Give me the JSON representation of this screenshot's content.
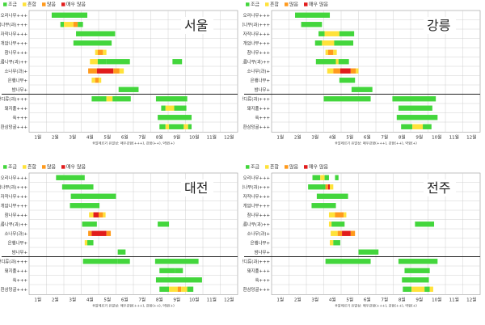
{
  "colors": {
    "low": "#43d63c",
    "moderate": "#ffe23a",
    "high": "#ff9a1c",
    "very_high": "#e11c1c"
  },
  "legend": [
    "조금",
    "흔함",
    "많음",
    "매우 많음"
  ],
  "months": [
    "1월",
    "2월",
    "3월",
    "4월",
    "5월",
    "6월",
    "7월",
    "8월",
    "9월",
    "10월",
    "11월",
    "12월"
  ],
  "note": "※알레르기 유발성: 매우강함(+++), 강함(++), 약함(+)",
  "species": [
    "오리나무+++",
    "측백나무(과)+++",
    "자작나무+++",
    "개암나무+++",
    "참나무+++",
    "느릅나무(과)++",
    "소나무(과)+",
    "은행나무+",
    "밤나무+",
    "잔디류(과)+++",
    "돼지풀+++",
    "쑥+++",
    "환삼덩굴+++"
  ],
  "chart_data": [
    {
      "type": "timeline",
      "city": "서울",
      "x_unit": "month",
      "xlim": [
        0.5,
        12.5
      ],
      "rows": [
        {
          "species": "오리나무+++",
          "segments": [
            {
              "start": 1.8,
              "end": 3.85,
              "level": "low"
            }
          ]
        },
        {
          "species": "측백나무(과)+++",
          "segments": [
            {
              "start": 2.3,
              "end": 2.5,
              "level": "low"
            },
            {
              "start": 2.5,
              "end": 3.05,
              "level": "moderate"
            },
            {
              "start": 3.05,
              "end": 3.3,
              "level": "high"
            },
            {
              "start": 3.3,
              "end": 3.6,
              "level": "low"
            }
          ]
        },
        {
          "species": "자작나무+++",
          "segments": [
            {
              "start": 3.2,
              "end": 5.45,
              "level": "low"
            }
          ]
        },
        {
          "species": "개암나무+++",
          "segments": [
            {
              "start": 3.05,
              "end": 5.25,
              "level": "low"
            }
          ]
        },
        {
          "species": "참나무+++",
          "segments": [
            {
              "start": 4.3,
              "end": 4.45,
              "level": "moderate"
            },
            {
              "start": 4.45,
              "end": 4.75,
              "level": "high"
            },
            {
              "start": 4.75,
              "end": 4.95,
              "level": "moderate"
            }
          ]
        },
        {
          "species": "느릅나무(과)++",
          "segments": [
            {
              "start": 4.0,
              "end": 4.45,
              "level": "moderate"
            },
            {
              "start": 4.45,
              "end": 4.95,
              "level": "low"
            },
            {
              "start": 4.95,
              "end": 6.3,
              "level": "low"
            },
            {
              "start": 8.75,
              "end": 9.3,
              "level": "low"
            }
          ]
        },
        {
          "species": "소나무(과)+",
          "segments": [
            {
              "start": 3.9,
              "end": 4.4,
              "level": "high"
            },
            {
              "start": 4.4,
              "end": 5.35,
              "level": "very_high"
            },
            {
              "start": 5.35,
              "end": 5.7,
              "level": "high"
            },
            {
              "start": 5.7,
              "end": 5.95,
              "level": "moderate"
            }
          ]
        },
        {
          "species": "은행나무+",
          "segments": [
            {
              "start": 4.1,
              "end": 4.3,
              "level": "moderate"
            },
            {
              "start": 4.3,
              "end": 4.5,
              "level": "high"
            },
            {
              "start": 4.5,
              "end": 4.65,
              "level": "moderate"
            }
          ]
        },
        {
          "species": "밤나무+",
          "segments": [
            {
              "start": 5.65,
              "end": 6.8,
              "level": "low"
            }
          ]
        },
        {
          "species": "잔디류(과)+++",
          "segments": [
            {
              "start": 4.1,
              "end": 4.95,
              "level": "low"
            },
            {
              "start": 4.95,
              "end": 5.3,
              "level": "moderate"
            },
            {
              "start": 5.3,
              "end": 6.35,
              "level": "low"
            },
            {
              "start": 7.8,
              "end": 9.6,
              "level": "low"
            }
          ]
        },
        {
          "species": "돼지풀+++",
          "segments": [
            {
              "start": 8.1,
              "end": 8.35,
              "level": "low"
            },
            {
              "start": 8.35,
              "end": 8.85,
              "level": "moderate"
            },
            {
              "start": 8.85,
              "end": 9.55,
              "level": "low"
            }
          ]
        },
        {
          "species": "쑥+++",
          "segments": [
            {
              "start": 7.9,
              "end": 9.85,
              "level": "low"
            }
          ]
        },
        {
          "species": "환삼덩굴+++",
          "segments": [
            {
              "start": 8.0,
              "end": 8.35,
              "level": "low"
            },
            {
              "start": 8.35,
              "end": 8.55,
              "level": "moderate"
            },
            {
              "start": 8.55,
              "end": 9.4,
              "level": "low"
            },
            {
              "start": 9.4,
              "end": 9.65,
              "level": "moderate"
            },
            {
              "start": 9.65,
              "end": 9.85,
              "level": "low"
            }
          ]
        }
      ]
    },
    {
      "type": "timeline",
      "city": "강릉",
      "x_unit": "month",
      "xlim": [
        0.5,
        12.5
      ],
      "rows": [
        {
          "species": "오리나무+++",
          "segments": [
            {
              "start": 1.85,
              "end": 3.85,
              "level": "low"
            }
          ]
        },
        {
          "species": "측백나무(과)+++",
          "segments": [
            {
              "start": 2.2,
              "end": 3.4,
              "level": "low"
            }
          ]
        },
        {
          "species": "자작나무+++",
          "segments": [
            {
              "start": 3.2,
              "end": 3.55,
              "level": "low"
            },
            {
              "start": 3.55,
              "end": 4.4,
              "level": "moderate"
            },
            {
              "start": 4.4,
              "end": 5.25,
              "level": "low"
            }
          ]
        },
        {
          "species": "개암나무+++",
          "segments": [
            {
              "start": 3.0,
              "end": 3.4,
              "level": "low"
            },
            {
              "start": 3.4,
              "end": 4.1,
              "level": "moderate"
            },
            {
              "start": 4.1,
              "end": 5.2,
              "level": "low"
            }
          ]
        },
        {
          "species": "참나무+++",
          "segments": [
            {
              "start": 3.6,
              "end": 3.75,
              "level": "moderate"
            },
            {
              "start": 3.75,
              "end": 4.05,
              "level": "high"
            },
            {
              "start": 4.05,
              "end": 4.25,
              "level": "moderate"
            }
          ]
        },
        {
          "species": "느릅나무(과)++",
          "segments": [
            {
              "start": 3.05,
              "end": 4.2,
              "level": "low"
            },
            {
              "start": 4.2,
              "end": 4.35,
              "level": "moderate"
            },
            {
              "start": 4.35,
              "end": 4.95,
              "level": "low"
            }
          ]
        },
        {
          "species": "소나무(과)+",
          "segments": [
            {
              "start": 3.7,
              "end": 4.05,
              "level": "moderate"
            },
            {
              "start": 4.05,
              "end": 4.45,
              "level": "high"
            },
            {
              "start": 4.45,
              "end": 5.05,
              "level": "very_high"
            },
            {
              "start": 5.05,
              "end": 5.35,
              "level": "high"
            },
            {
              "start": 5.35,
              "end": 5.5,
              "level": "moderate"
            }
          ]
        },
        {
          "species": "은행나무+",
          "segments": [
            {
              "start": 4.4,
              "end": 5.3,
              "level": "low"
            }
          ]
        },
        {
          "species": "밤나무+",
          "segments": [
            {
              "start": 5.1,
              "end": 6.3,
              "level": "low"
            }
          ]
        },
        {
          "species": "잔디류(과)+++",
          "segments": [
            {
              "start": 3.5,
              "end": 6.2,
              "level": "low"
            },
            {
              "start": 7.45,
              "end": 9.95,
              "level": "low"
            }
          ]
        },
        {
          "species": "돼지풀+++",
          "segments": [
            {
              "start": 7.8,
              "end": 9.75,
              "level": "low"
            }
          ]
        },
        {
          "species": "쑥+++",
          "segments": [
            {
              "start": 7.7,
              "end": 10.05,
              "level": "low"
            }
          ]
        },
        {
          "species": "환삼덩굴+++",
          "segments": [
            {
              "start": 7.95,
              "end": 8.6,
              "level": "low"
            },
            {
              "start": 8.6,
              "end": 9.2,
              "level": "moderate"
            },
            {
              "start": 9.2,
              "end": 9.7,
              "level": "low"
            }
          ]
        }
      ]
    },
    {
      "type": "timeline",
      "city": "대전",
      "x_unit": "month",
      "xlim": [
        0.5,
        12.5
      ],
      "rows": [
        {
          "species": "오리나무+++",
          "segments": [
            {
              "start": 2.05,
              "end": 3.7,
              "level": "low"
            }
          ]
        },
        {
          "species": "측백나무(과)+++",
          "segments": [
            {
              "start": 2.4,
              "end": 4.2,
              "level": "low"
            }
          ]
        },
        {
          "species": "자작나무+++",
          "segments": [
            {
              "start": 2.9,
              "end": 5.5,
              "level": "low"
            }
          ]
        },
        {
          "species": "개암나무+++",
          "segments": [
            {
              "start": 2.85,
              "end": 4.55,
              "level": "low"
            }
          ]
        },
        {
          "species": "참나무+++",
          "segments": [
            {
              "start": 3.95,
              "end": 4.2,
              "level": "moderate"
            },
            {
              "start": 4.2,
              "end": 4.5,
              "level": "very_high"
            },
            {
              "start": 4.5,
              "end": 4.75,
              "level": "high"
            },
            {
              "start": 4.75,
              "end": 4.9,
              "level": "moderate"
            }
          ]
        },
        {
          "species": "느릅나무(과)++",
          "segments": [
            {
              "start": 3.55,
              "end": 4.4,
              "level": "low"
            },
            {
              "start": 7.9,
              "end": 8.55,
              "level": "low"
            }
          ]
        },
        {
          "species": "소나무(과)+",
          "segments": [
            {
              "start": 3.9,
              "end": 4.1,
              "level": "high"
            },
            {
              "start": 4.1,
              "end": 4.95,
              "level": "very_high"
            },
            {
              "start": 4.95,
              "end": 5.2,
              "level": "high"
            }
          ]
        },
        {
          "species": "은행나무+",
          "segments": [
            {
              "start": 3.7,
              "end": 3.85,
              "level": "moderate"
            },
            {
              "start": 3.85,
              "end": 4.2,
              "level": "low"
            }
          ]
        },
        {
          "species": "밤나무+",
          "segments": [
            {
              "start": 5.6,
              "end": 6.05,
              "level": "low"
            }
          ]
        },
        {
          "species": "잔디류(과)+++",
          "segments": [
            {
              "start": 3.6,
              "end": 5.6,
              "level": "low"
            },
            {
              "start": 5.6,
              "end": 6.3,
              "level": "low"
            },
            {
              "start": 7.75,
              "end": 10.25,
              "level": "low"
            }
          ]
        },
        {
          "species": "돼지풀+++",
          "segments": [
            {
              "start": 8.0,
              "end": 8.9,
              "level": "low"
            },
            {
              "start": 8.9,
              "end": 9.35,
              "level": "low"
            }
          ]
        },
        {
          "species": "쑥+++",
          "segments": [
            {
              "start": 7.8,
              "end": 10.45,
              "level": "low"
            }
          ]
        },
        {
          "species": "환삼덩굴+++",
          "segments": [
            {
              "start": 8.0,
              "end": 8.55,
              "level": "low"
            },
            {
              "start": 8.55,
              "end": 9.05,
              "level": "moderate"
            },
            {
              "start": 9.05,
              "end": 9.25,
              "level": "high"
            },
            {
              "start": 9.25,
              "end": 9.6,
              "level": "moderate"
            },
            {
              "start": 9.6,
              "end": 9.95,
              "level": "low"
            }
          ]
        }
      ]
    },
    {
      "type": "timeline",
      "city": "전주",
      "x_unit": "month",
      "xlim": [
        0.5,
        12.5
      ],
      "rows": [
        {
          "species": "오리나무+++",
          "segments": [
            {
              "start": 2.85,
              "end": 3.3,
              "level": "low"
            },
            {
              "start": 3.3,
              "end": 3.55,
              "level": "moderate"
            },
            {
              "start": 3.55,
              "end": 3.8,
              "level": "low"
            },
            {
              "start": 4.15,
              "end": 4.35,
              "level": "low"
            }
          ]
        },
        {
          "species": "측백나무(과)+++",
          "segments": [
            {
              "start": 2.6,
              "end": 3.6,
              "level": "low"
            },
            {
              "start": 3.6,
              "end": 3.75,
              "level": "high"
            },
            {
              "start": 3.75,
              "end": 3.85,
              "level": "very_high"
            },
            {
              "start": 3.85,
              "end": 4.05,
              "level": "moderate"
            }
          ]
        },
        {
          "species": "자작나무+++",
          "segments": [
            {
              "start": 3.1,
              "end": 4.9,
              "level": "low"
            }
          ]
        },
        {
          "species": "개암나무+++",
          "segments": [
            {
              "start": 2.8,
              "end": 4.2,
              "level": "low"
            }
          ]
        },
        {
          "species": "참나무+++",
          "segments": [
            {
              "start": 3.8,
              "end": 4.15,
              "level": "moderate"
            },
            {
              "start": 4.15,
              "end": 4.65,
              "level": "high"
            },
            {
              "start": 4.65,
              "end": 4.8,
              "level": "moderate"
            }
          ]
        },
        {
          "species": "느릅나무(과)++",
          "segments": [
            {
              "start": 3.8,
              "end": 3.95,
              "level": "moderate"
            },
            {
              "start": 3.95,
              "end": 4.7,
              "level": "low"
            },
            {
              "start": 8.75,
              "end": 9.85,
              "level": "low"
            }
          ]
        },
        {
          "species": "소나무(과)+",
          "segments": [
            {
              "start": 3.9,
              "end": 4.3,
              "level": "moderate"
            },
            {
              "start": 4.3,
              "end": 4.55,
              "level": "high"
            },
            {
              "start": 4.55,
              "end": 5.05,
              "level": "very_high"
            },
            {
              "start": 5.05,
              "end": 5.3,
              "level": "high"
            }
          ]
        },
        {
          "species": "은행나무+",
          "segments": [
            {
              "start": 3.85,
              "end": 4.05,
              "level": "moderate"
            },
            {
              "start": 4.05,
              "end": 4.45,
              "level": "low"
            }
          ]
        },
        {
          "species": "밤나무+",
          "segments": [
            {
              "start": 5.5,
              "end": 6.65,
              "level": "low"
            }
          ]
        },
        {
          "species": "잔디류(과)+++",
          "segments": [
            {
              "start": 3.6,
              "end": 6.2,
              "level": "low"
            },
            {
              "start": 7.8,
              "end": 10.05,
              "level": "low"
            }
          ]
        },
        {
          "species": "돼지풀+++",
          "segments": [
            {
              "start": 8.15,
              "end": 9.6,
              "level": "low"
            }
          ]
        },
        {
          "species": "쑥+++",
          "segments": [
            {
              "start": 8.0,
              "end": 9.55,
              "level": "low"
            }
          ]
        },
        {
          "species": "환삼덩굴+++",
          "segments": [
            {
              "start": 8.05,
              "end": 8.55,
              "level": "low"
            },
            {
              "start": 8.55,
              "end": 9.3,
              "level": "moderate"
            },
            {
              "start": 9.3,
              "end": 9.6,
              "level": "low"
            },
            {
              "start": 9.6,
              "end": 9.8,
              "level": "moderate"
            }
          ]
        }
      ]
    }
  ]
}
